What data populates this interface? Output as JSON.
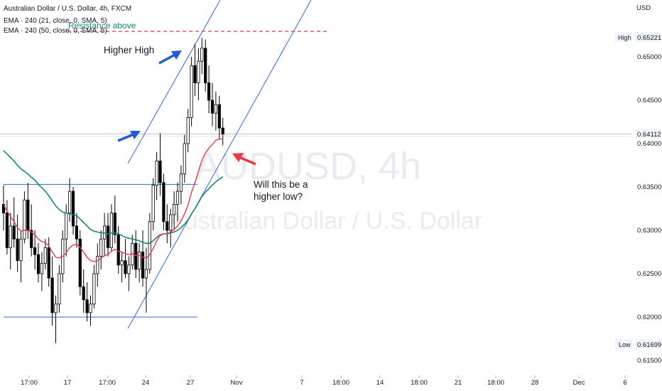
{
  "header": {
    "title": "Australian Dollar / U.S. Dollar, 4h, FXCM",
    "indicator_1": "EMA · 240 (21, close, 0, SMA, 5)",
    "indicator_2": "EMA · 240 (50, close, 0, SMA, 5)"
  },
  "watermark": {
    "symbol": "AUDUSD, 4h",
    "name": "Australian Dollar / U.S. Dollar"
  },
  "price_axis": {
    "currency": "USD",
    "high_label": "High",
    "high_value": "0.65221",
    "low_label": "Low",
    "low_value": "0.61699",
    "last_value": "0.64112",
    "ticks": [
      "0.65000",
      "0.64500",
      "0.64000",
      "0.63500",
      "0.63000",
      "0.62500",
      "0.62000",
      "0.61500"
    ]
  },
  "time_axis": {
    "ticks": [
      "17:00",
      "17",
      "17:00",
      "24",
      "27",
      "Nov",
      "7",
      "18:00",
      "14",
      "18:00",
      "21",
      "18:00",
      "28",
      "Dec",
      "6"
    ]
  },
  "annotations": {
    "higher_high": "Higher High",
    "resistance": "Resistance above",
    "question_line1": "Will this be a",
    "question_line2": "higher low?"
  },
  "chart_data": {
    "type": "candlestick",
    "symbol": "AUDUSD",
    "timeframe": "4h",
    "ylim": [
      0.6145,
      0.6605
    ],
    "x_ticks": [
      "17:00",
      "17",
      "17:00",
      "24",
      "27",
      "Nov",
      "7",
      "18:00",
      "14",
      "18:00",
      "21",
      "18:00",
      "28",
      "Dec",
      "6"
    ],
    "y_ticks": [
      0.615,
      0.62,
      0.625,
      0.63,
      0.635,
      0.64,
      0.645,
      0.65
    ],
    "high": 0.65221,
    "low": 0.61699,
    "last": 0.64112,
    "candles": [
      [
        0.633,
        0.6352,
        0.63,
        0.632
      ],
      [
        0.632,
        0.6335,
        0.6272,
        0.628
      ],
      [
        0.628,
        0.632,
        0.6255,
        0.6305
      ],
      [
        0.6305,
        0.6338,
        0.628,
        0.629
      ],
      [
        0.629,
        0.6318,
        0.6252,
        0.6265
      ],
      [
        0.6265,
        0.63,
        0.624,
        0.629
      ],
      [
        0.629,
        0.6345,
        0.6285,
        0.6335
      ],
      [
        0.6335,
        0.6355,
        0.629,
        0.63
      ],
      [
        0.63,
        0.633,
        0.627,
        0.628
      ],
      [
        0.628,
        0.63,
        0.6255,
        0.6272
      ],
      [
        0.6272,
        0.6285,
        0.624,
        0.625
      ],
      [
        0.625,
        0.6275,
        0.623,
        0.6262
      ],
      [
        0.6262,
        0.629,
        0.6255,
        0.628
      ],
      [
        0.628,
        0.6292,
        0.6235,
        0.6245
      ],
      [
        0.6245,
        0.627,
        0.619,
        0.6205
      ],
      [
        0.6205,
        0.6225,
        0.617,
        0.6215
      ],
      [
        0.6215,
        0.626,
        0.6205,
        0.625
      ],
      [
        0.625,
        0.63,
        0.624,
        0.629
      ],
      [
        0.629,
        0.633,
        0.627,
        0.632
      ],
      [
        0.632,
        0.636,
        0.631,
        0.6345
      ],
      [
        0.6345,
        0.635,
        0.6295,
        0.6305
      ],
      [
        0.6305,
        0.632,
        0.628,
        0.629
      ],
      [
        0.629,
        0.63,
        0.6225,
        0.6235
      ],
      [
        0.6235,
        0.6255,
        0.6205,
        0.622
      ],
      [
        0.622,
        0.624,
        0.6195,
        0.6205
      ],
      [
        0.6205,
        0.6225,
        0.619,
        0.6215
      ],
      [
        0.6215,
        0.626,
        0.621,
        0.625
      ],
      [
        0.625,
        0.6285,
        0.6235,
        0.627
      ],
      [
        0.627,
        0.63,
        0.6255,
        0.629
      ],
      [
        0.629,
        0.632,
        0.627,
        0.6305
      ],
      [
        0.6305,
        0.632,
        0.627,
        0.628
      ],
      [
        0.628,
        0.633,
        0.6275,
        0.632
      ],
      [
        0.632,
        0.634,
        0.6285,
        0.6295
      ],
      [
        0.6295,
        0.6305,
        0.625,
        0.626
      ],
      [
        0.626,
        0.6275,
        0.624,
        0.6265
      ],
      [
        0.6265,
        0.629,
        0.6245,
        0.625
      ],
      [
        0.625,
        0.627,
        0.623,
        0.626
      ],
      [
        0.626,
        0.6295,
        0.6255,
        0.6285
      ],
      [
        0.6285,
        0.63,
        0.6245,
        0.6255
      ],
      [
        0.6255,
        0.6285,
        0.624,
        0.6275
      ],
      [
        0.6275,
        0.63,
        0.6235,
        0.6245
      ],
      [
        0.6245,
        0.628,
        0.6205,
        0.6255
      ],
      [
        0.6255,
        0.632,
        0.625,
        0.631
      ],
      [
        0.631,
        0.636,
        0.63,
        0.6352
      ],
      [
        0.6352,
        0.639,
        0.6335,
        0.638
      ],
      [
        0.638,
        0.6412,
        0.634,
        0.6355
      ],
      [
        0.6355,
        0.6365,
        0.63,
        0.631
      ],
      [
        0.631,
        0.633,
        0.6285,
        0.63
      ],
      [
        0.63,
        0.6325,
        0.628,
        0.6318
      ],
      [
        0.6318,
        0.6345,
        0.63,
        0.633
      ],
      [
        0.633,
        0.6355,
        0.631,
        0.6345
      ],
      [
        0.6345,
        0.6375,
        0.633,
        0.6365
      ],
      [
        0.6365,
        0.641,
        0.6355,
        0.64
      ],
      [
        0.64,
        0.644,
        0.639,
        0.643
      ],
      [
        0.643,
        0.65,
        0.642,
        0.649
      ],
      [
        0.649,
        0.6515,
        0.6455,
        0.647
      ],
      [
        0.647,
        0.651,
        0.645,
        0.6495
      ],
      [
        0.6495,
        0.6522,
        0.648,
        0.651
      ],
      [
        0.651,
        0.652,
        0.646,
        0.647
      ],
      [
        0.647,
        0.649,
        0.6435,
        0.645
      ],
      [
        0.645,
        0.647,
        0.642,
        0.6435
      ],
      [
        0.6435,
        0.646,
        0.6415,
        0.6445
      ],
      [
        0.6445,
        0.6455,
        0.6405,
        0.6418
      ],
      [
        0.6418,
        0.643,
        0.6398,
        0.6411
      ]
    ],
    "ema_21": [
      0.633,
      0.6322,
      0.6316,
      0.631,
      0.6303,
      0.6299,
      0.63,
      0.63,
      0.6298,
      0.6295,
      0.629,
      0.6287,
      0.6286,
      0.6282,
      0.6275,
      0.6269,
      0.6268,
      0.627,
      0.6274,
      0.628,
      0.6283,
      0.6284,
      0.628,
      0.6275,
      0.6269,
      0.6265,
      0.6264,
      0.6265,
      0.6268,
      0.6271,
      0.6272,
      0.6276,
      0.6278,
      0.6276,
      0.6275,
      0.6273,
      0.6272,
      0.6273,
      0.6271,
      0.6271,
      0.6269,
      0.6268,
      0.6272,
      0.6279,
      0.6288,
      0.6294,
      0.6296,
      0.6296,
      0.6298,
      0.6301,
      0.6305,
      0.6311,
      0.6319,
      0.6329,
      0.6344,
      0.6355,
      0.6368,
      0.6381,
      0.6389,
      0.6395,
      0.6399,
      0.6404,
      0.6405,
      0.6406
    ],
    "ema_50": [
      0.6392,
      0.6388,
      0.6384,
      0.638,
      0.6375,
      0.6371,
      0.6368,
      0.6365,
      0.6361,
      0.6358,
      0.6353,
      0.6349,
      0.6345,
      0.634,
      0.6334,
      0.6328,
      0.6324,
      0.6321,
      0.632,
      0.6319,
      0.6318,
      0.6317,
      0.6313,
      0.6309,
      0.6305,
      0.6301,
      0.6299,
      0.6298,
      0.6297,
      0.6297,
      0.6296,
      0.6297,
      0.6297,
      0.6296,
      0.6294,
      0.6292,
      0.6291,
      0.629,
      0.6289,
      0.6288,
      0.6286,
      0.6285,
      0.6285,
      0.6288,
      0.6292,
      0.6295,
      0.6296,
      0.6296,
      0.6297,
      0.6298,
      0.63,
      0.6303,
      0.6307,
      0.6312,
      0.6319,
      0.6325,
      0.6332,
      0.6339,
      0.6344,
      0.6348,
      0.6352,
      0.6356,
      0.6359,
      0.6362
    ],
    "horizontal_levels": [
      0.6353,
      0.62
    ],
    "resistance_level": 0.6522,
    "colors": {
      "ema_21": "#e8394d",
      "ema_50": "#12877a",
      "channel": "#3366e0",
      "resistance": "#e8394d",
      "candle_up": "#ffffff",
      "candle_down": "#000000",
      "arrow_blue": "#1f5be0",
      "arrow_red": "#f23645"
    }
  }
}
